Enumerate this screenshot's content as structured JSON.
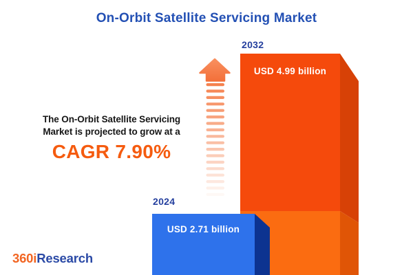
{
  "title": "On-Orbit Satellite Servicing Market",
  "promo": {
    "line1": "The On-Orbit Satellite Servicing",
    "line2": "Market is projected to grow at a",
    "cagr": "CAGR 7.90%"
  },
  "chart_data": {
    "type": "bar",
    "title": "On-Orbit Satellite Servicing Market",
    "categories": [
      "2024",
      "2032"
    ],
    "values": [
      2.71,
      4.99
    ],
    "unit": "USD billion",
    "value_labels": [
      "USD 2.71 billion",
      "USD 4.99 billion"
    ],
    "cagr_percent": 7.9,
    "annotations": [
      "The On-Orbit Satellite Servicing Market is projected to grow at a CAGR 7.90%"
    ],
    "legend": "none",
    "axes": "none",
    "style": "3d-extruded-bars"
  },
  "icons": {
    "growth_arrow": "up-arrow-with-fading-stripes"
  },
  "logo": {
    "part1": "360i",
    "part2": "Research"
  },
  "colors": {
    "title_blue": "#2350b4",
    "year_label_blue": "#243f9e",
    "accent_orange": "#f55b0f",
    "text_black": "#161616",
    "bar_2024_front": "#2e72eb",
    "bar_2024_side": "#0d3390",
    "bar_2032_front_top": "#f54a0c",
    "bar_2032_front_bottom": "#fb6c11",
    "bar_2032_side_top": "#d74106",
    "bar_2032_side_bottom": "#e05506",
    "arrow_orange": "#f5814e",
    "logo_orange": "#f26522",
    "logo_blue": "#2b4aa6"
  }
}
